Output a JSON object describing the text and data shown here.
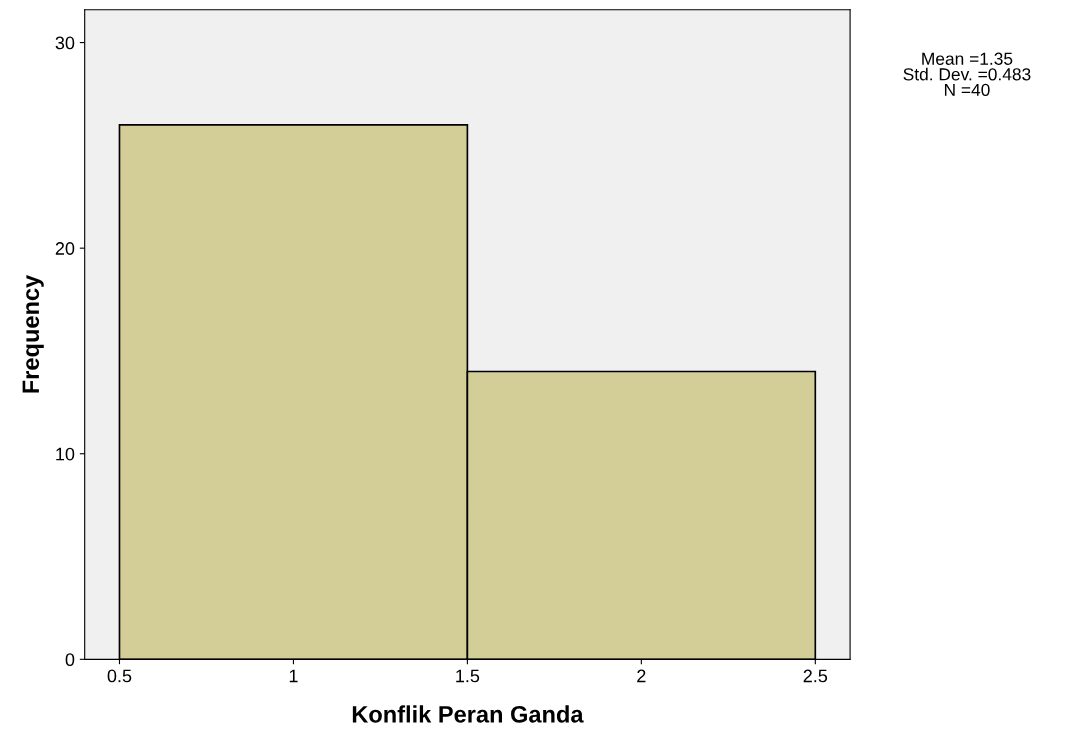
{
  "chart_data": {
    "type": "histogram",
    "xlabel": "Konflik Peran Ganda",
    "ylabel": "Frequency",
    "bins": [
      0.5,
      1.5,
      2.5
    ],
    "values": [
      26,
      14
    ],
    "color": "#d3ce97",
    "xlim": [
      0.4,
      2.6
    ],
    "xticks": [
      0.5,
      1,
      1.5,
      2,
      2.5
    ],
    "ylim": [
      0,
      31.6
    ],
    "yticks": [
      0,
      10,
      20,
      30
    ],
    "annotations": [
      "Mean =1.35\nStd. Dev. =0.483\nN =40"
    ],
    "grid": false
  }
}
